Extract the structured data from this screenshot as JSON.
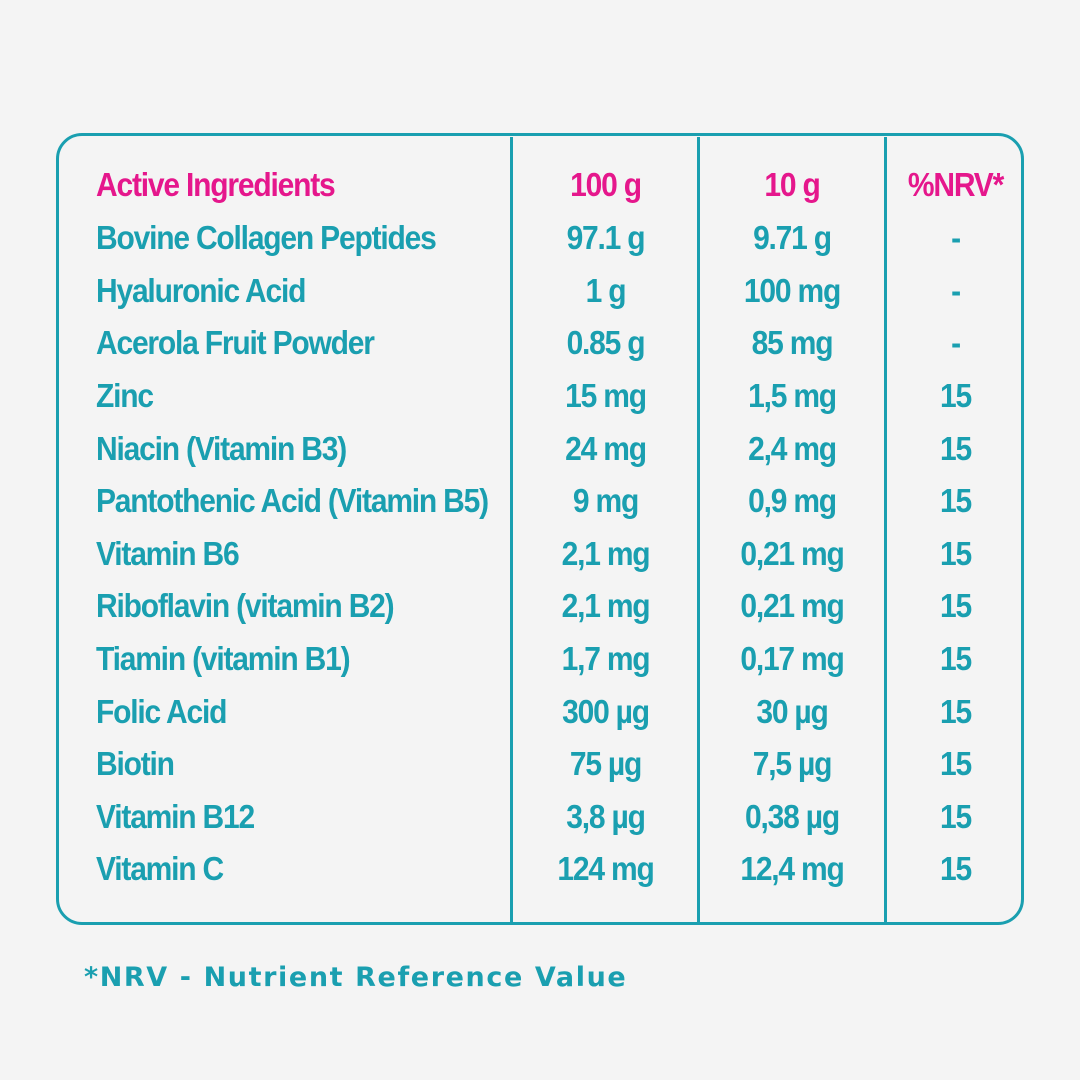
{
  "table": {
    "header": {
      "name": "Active Ingredients",
      "per100": "100 g",
      "per10": "10 g",
      "nrv": "%NRV*"
    },
    "rows": [
      {
        "name": "Bovine Collagen Peptides",
        "per100": "97.1 g",
        "per10": "9.71 g",
        "nrv": "-"
      },
      {
        "name": "Hyaluronic Acid",
        "per100": "1 g",
        "per10": "100 mg",
        "nrv": "-"
      },
      {
        "name": "Acerola Fruit Powder",
        "per100": "0.85 g",
        "per10": "85 mg",
        "nrv": "-"
      },
      {
        "name": "Zinc",
        "per100": "15 mg",
        "per10": "1,5 mg",
        "nrv": "15"
      },
      {
        "name": "Niacin (Vitamin B3)",
        "per100": "24 mg",
        "per10": "2,4 mg",
        "nrv": "15"
      },
      {
        "name": "Pantothenic Acid (Vitamin B5)",
        "per100": "9 mg",
        "per10": "0,9 mg",
        "nrv": "15"
      },
      {
        "name": "Vitamin B6",
        "per100": "2,1 mg",
        "per10": "0,21 mg",
        "nrv": "15"
      },
      {
        "name": "Riboflavin (vitamin B2)",
        "per100": "2,1 mg",
        "per10": "0,21 mg",
        "nrv": "15"
      },
      {
        "name": "Tiamin (vitamin B1)",
        "per100": "1,7 mg",
        "per10": "0,17 mg",
        "nrv": "15"
      },
      {
        "name": "Folic Acid",
        "per100": "300 µg",
        "per10": "30 µg",
        "nrv": "15"
      },
      {
        "name": "Biotin",
        "per100": "75 µg",
        "per10": "7,5 µg",
        "nrv": "15"
      },
      {
        "name": "Vitamin B12",
        "per100": "3,8 µg",
        "per10": "0,38 µg",
        "nrv": "15"
      },
      {
        "name": "Vitamin C",
        "per100": "124 mg",
        "per10": "12,4 mg",
        "nrv": "15"
      }
    ]
  },
  "footnote": "*NRV - Nutrient Reference Value",
  "colors": {
    "accent": "#1a9fb0",
    "header": "#e5178c",
    "background": "#f4f4f4"
  }
}
